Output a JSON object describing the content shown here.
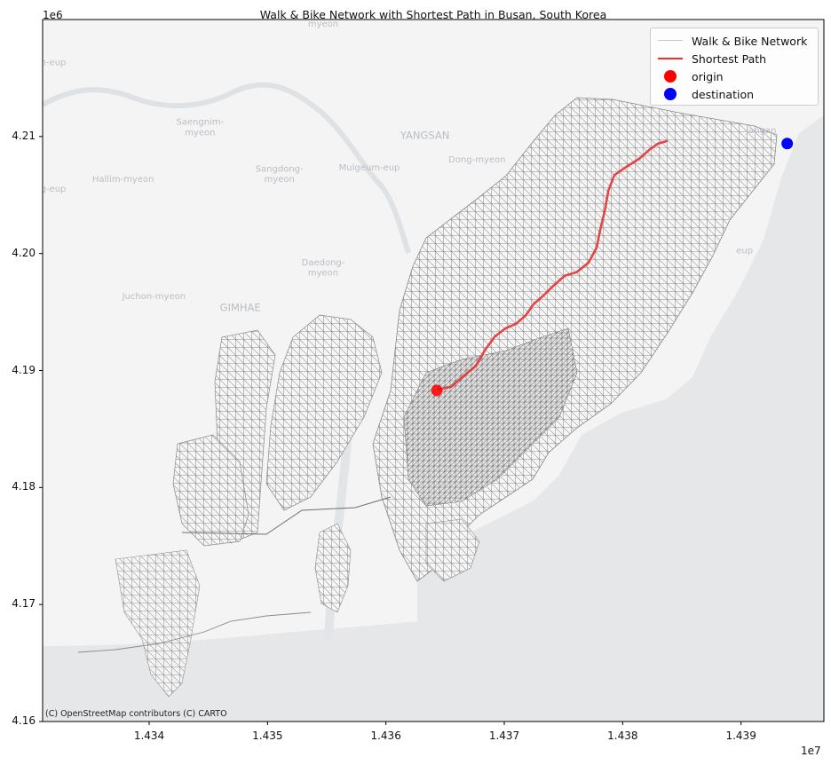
{
  "title": "Walk & Bike Network with Shortest Path in Busan, South Korea",
  "axes": {
    "y_offset": "1e6",
    "x_offset": "1e7",
    "y_ticks": [
      "4.21",
      "4.20",
      "4.19",
      "4.18",
      "4.17",
      "4.16"
    ],
    "x_ticks": [
      "1.434",
      "1.435",
      "1.436",
      "1.437",
      "1.438",
      "1.439"
    ],
    "x_tick_values": [
      14340000,
      14350000,
      14360000,
      14370000,
      14380000,
      14390000
    ],
    "y_tick_values": [
      4210000,
      4200000,
      4190000,
      4180000,
      4170000,
      4160000
    ],
    "xlim": [
      14331000,
      14397000
    ],
    "ylim": [
      4160000,
      4220000
    ]
  },
  "legend": {
    "items": [
      {
        "label": "Walk & Bike Network",
        "color": "#c8c8c8",
        "kind": "line"
      },
      {
        "label": "Shortest Path",
        "color": "#e53333",
        "kind": "line"
      },
      {
        "label": "origin",
        "color": "#ff0000",
        "kind": "dot"
      },
      {
        "label": "destination",
        "color": "#0000ff",
        "kind": "dot"
      }
    ]
  },
  "map_labels": [
    {
      "text": "myeon",
      "x": 14354700,
      "y": 4219400
    },
    {
      "text": "n-eup",
      "x": 14331900,
      "y": 4216100
    },
    {
      "text": "Saengnim-",
      "x": 14344300,
      "y": 4211000
    },
    {
      "text": "myeon",
      "x": 14344300,
      "y": 4210100
    },
    {
      "text": "YANGSAN",
      "x": 14363300,
      "y": 4209800
    },
    {
      "text": "Dong-myeon",
      "x": 14367700,
      "y": 4207800
    },
    {
      "text": "Hallim-myeon",
      "x": 14337800,
      "y": 4206100
    },
    {
      "text": "Sangdong-",
      "x": 14351000,
      "y": 4207000
    },
    {
      "text": "myeon",
      "x": 14351000,
      "y": 4206100
    },
    {
      "text": "Mulgeum-eup",
      "x": 14358600,
      "y": 4207100
    },
    {
      "text": "g-eup",
      "x": 14331900,
      "y": 4205300
    },
    {
      "text": "Daedong-",
      "x": 14354700,
      "y": 4199000
    },
    {
      "text": "myeon",
      "x": 14354700,
      "y": 4198100
    },
    {
      "text": "Juchon-myeon",
      "x": 14340400,
      "y": 4196100
    },
    {
      "text": "GIMHAE",
      "x": 14347700,
      "y": 4195100
    },
    {
      "text": "Jangan",
      "x": 14391700,
      "y": 4210300
    },
    {
      "text": "eup",
      "x": 14390300,
      "y": 4200000
    }
  ],
  "network": {
    "label": "Walk & Bike Network",
    "color": "#808080"
  },
  "shortest_path": {
    "label": "Shortest Path",
    "color": "#e53333",
    "points": [
      [
        14364400,
        4188400
      ],
      [
        14365500,
        4188600
      ],
      [
        14366300,
        4189300
      ],
      [
        14367000,
        4189900
      ],
      [
        14367600,
        4190400
      ],
      [
        14368400,
        4191800
      ],
      [
        14369200,
        4192900
      ],
      [
        14370100,
        4193600
      ],
      [
        14371000,
        4194000
      ],
      [
        14371800,
        4194700
      ],
      [
        14372500,
        4195700
      ],
      [
        14373200,
        4196300
      ],
      [
        14374100,
        4197200
      ],
      [
        14375100,
        4198100
      ],
      [
        14376100,
        4198400
      ],
      [
        14377100,
        4199200
      ],
      [
        14377800,
        4200500
      ],
      [
        14378100,
        4202000
      ],
      [
        14378500,
        4203700
      ],
      [
        14378800,
        4205400
      ],
      [
        14379300,
        4206700
      ],
      [
        14380300,
        4207400
      ],
      [
        14381400,
        4208100
      ],
      [
        14382300,
        4208900
      ],
      [
        14383000,
        4209400
      ],
      [
        14383700,
        4209600
      ]
    ]
  },
  "origin": {
    "label": "origin",
    "x": 14364300,
    "y": 4188300,
    "color": "#ff0000"
  },
  "destination": {
    "label": "destination",
    "x": 14393900,
    "y": 4209400,
    "color": "#0000ff"
  },
  "attribution": "(C) OpenStreetMap contributors (C) CARTO"
}
